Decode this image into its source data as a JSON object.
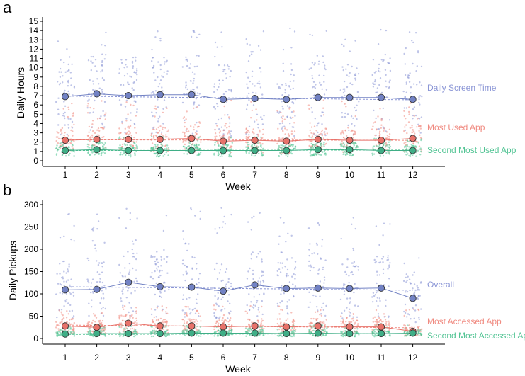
{
  "chart_data": [
    {
      "type": "scatter",
      "panel_label": "a",
      "xlabel": "Week",
      "ylabel": "Daily Hours",
      "categories": [
        "1",
        "2",
        "3",
        "4",
        "5",
        "6",
        "7",
        "8",
        "9",
        "10",
        "11",
        "12"
      ],
      "ylim": [
        0,
        15
      ],
      "yticks": [
        "0",
        "1",
        "2",
        "3",
        "4",
        "5",
        "6",
        "7",
        "8",
        "9",
        "10",
        "11",
        "12",
        "13",
        "14",
        "15"
      ],
      "series": [
        {
          "name": "Daily Screen Time",
          "color": "#8b96d6",
          "marker_fill": "#7282c4",
          "values": [
            6.9,
            7.2,
            7.0,
            7.1,
            7.1,
            6.6,
            6.7,
            6.6,
            6.8,
            6.8,
            6.8,
            6.6
          ],
          "trend": [
            6.95,
            6.55
          ],
          "spread": [
            0,
            14.3
          ]
        },
        {
          "name": "Most Used App",
          "color": "#f08a80",
          "marker_fill": "#e8726a",
          "values": [
            2.2,
            2.3,
            2.3,
            2.3,
            2.4,
            2.1,
            2.2,
            2.1,
            2.3,
            2.2,
            2.2,
            2.4
          ],
          "trend": [
            2.25,
            2.2
          ],
          "spread": [
            0,
            6.5
          ]
        },
        {
          "name": "Second Most Used App",
          "color": "#52c494",
          "marker_fill": "#3fae86",
          "values": [
            1.1,
            1.2,
            1.1,
            1.1,
            1.1,
            1.1,
            1.1,
            1.1,
            1.2,
            1.2,
            1.1,
            1.1
          ],
          "trend": [
            1.1,
            1.15
          ],
          "spread": [
            0,
            2.6
          ]
        }
      ]
    },
    {
      "type": "scatter",
      "panel_label": "b",
      "xlabel": "Week",
      "ylabel": "Daily Pickups",
      "categories": [
        "1",
        "2",
        "3",
        "4",
        "5",
        "6",
        "7",
        "8",
        "9",
        "10",
        "11",
        "12"
      ],
      "ylim": [
        0,
        300
      ],
      "yticks": [
        "0",
        "50",
        "100",
        "150",
        "200",
        "250",
        "300"
      ],
      "series": [
        {
          "name": "Overall",
          "color": "#8b96d6",
          "marker_fill": "#7282c4",
          "values": [
            109,
            110,
            126,
            116,
            115,
            106,
            120,
            112,
            113,
            112,
            113,
            90
          ],
          "trend": [
            116,
            108
          ],
          "spread": [
            0,
            295
          ]
        },
        {
          "name": "Most Accessed App",
          "color": "#f08a80",
          "marker_fill": "#e8726a",
          "values": [
            28,
            25,
            34,
            28,
            28,
            26,
            28,
            26,
            28,
            26,
            26,
            16
          ],
          "trend": [
            30,
            24
          ],
          "spread": [
            0,
            75
          ]
        },
        {
          "name": "Second Most Accessed App",
          "color": "#52c494",
          "marker_fill": "#3fae86",
          "values": [
            10,
            11,
            11,
            11,
            12,
            12,
            12,
            11,
            12,
            11,
            11,
            12
          ],
          "trend": [
            9,
            11
          ],
          "spread": [
            0,
            30
          ]
        }
      ]
    }
  ]
}
